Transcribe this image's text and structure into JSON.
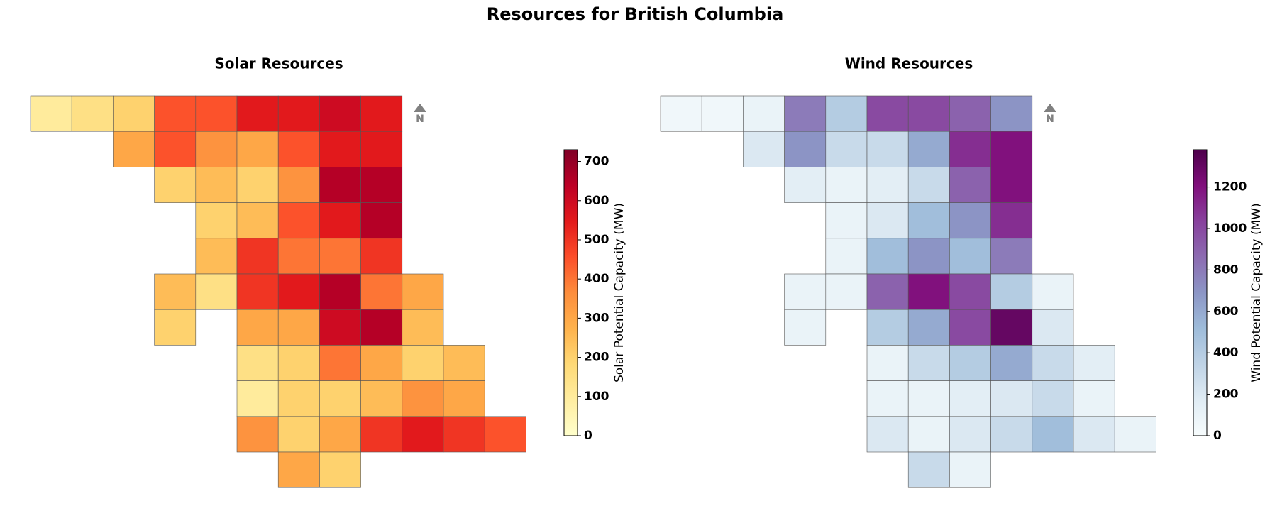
{
  "title": "Resources for British Columbia",
  "chart_data": [
    {
      "type": "map",
      "title": "Solar Resources",
      "north": "N",
      "colorbar_label": "Solar Potential Capacity (MW)",
      "clim": [
        0,
        730
      ],
      "cticks": [
        0,
        100,
        200,
        300,
        400,
        500,
        600,
        700
      ],
      "colors": [
        "#ffffcc",
        "#ffeda0",
        "#fed976",
        "#feb24c",
        "#fd8d3c",
        "#fc4e2a",
        "#e31a1c",
        "#bd0026",
        "#800026"
      ],
      "values": [
        [
          100,
          150,
          200,
          450,
          450,
          550,
          550,
          600,
          550,
          null,
          null,
          null
        ],
        [
          null,
          null,
          300,
          450,
          350,
          300,
          450,
          550,
          550,
          null,
          null,
          null
        ],
        [
          null,
          null,
          null,
          200,
          250,
          200,
          350,
          650,
          650,
          null,
          null,
          null
        ],
        [
          null,
          null,
          null,
          null,
          200,
          250,
          450,
          550,
          650,
          null,
          null,
          null
        ],
        [
          null,
          null,
          null,
          null,
          250,
          500,
          400,
          400,
          500,
          null,
          null,
          null
        ],
        [
          null,
          null,
          null,
          250,
          150,
          500,
          550,
          650,
          400,
          300,
          null,
          null
        ],
        [
          null,
          null,
          null,
          200,
          null,
          300,
          300,
          600,
          650,
          250,
          null,
          null
        ],
        [
          null,
          null,
          null,
          null,
          null,
          150,
          200,
          400,
          300,
          200,
          250,
          null
        ],
        [
          null,
          null,
          null,
          null,
          null,
          100,
          200,
          200,
          250,
          350,
          300,
          null
        ],
        [
          null,
          null,
          null,
          null,
          null,
          350,
          200,
          300,
          500,
          550,
          500,
          450
        ],
        [
          null,
          null,
          null,
          null,
          null,
          null,
          300,
          200,
          null,
          null,
          null,
          null
        ]
      ]
    },
    {
      "type": "map",
      "title": "Wind Resources",
      "north": "N",
      "colorbar_label": "Wind Potential Capacity (MW)",
      "clim": [
        0,
        1380
      ],
      "cticks": [
        0,
        200,
        400,
        600,
        800,
        1000,
        1200
      ],
      "colors": [
        "#f7fcfd",
        "#e0ecf4",
        "#bfd3e6",
        "#9ebcda",
        "#8c96c6",
        "#8c6bb1",
        "#88419d",
        "#810f7c",
        "#4d004b"
      ],
      "values": [
        [
          50,
          50,
          100,
          800,
          400,
          1000,
          1000,
          900,
          700,
          null,
          null,
          null
        ],
        [
          null,
          null,
          200,
          700,
          300,
          300,
          600,
          1100,
          1200,
          null,
          null,
          null
        ],
        [
          null,
          null,
          null,
          150,
          100,
          150,
          300,
          900,
          1200,
          null,
          null,
          null
        ],
        [
          null,
          null,
          null,
          null,
          100,
          200,
          500,
          700,
          1100,
          null,
          null,
          null
        ],
        [
          null,
          null,
          null,
          null,
          100,
          500,
          700,
          500,
          800,
          null,
          null,
          null
        ],
        [
          null,
          null,
          null,
          100,
          100,
          900,
          1200,
          1000,
          400,
          100,
          null,
          null
        ],
        [
          null,
          null,
          null,
          100,
          null,
          400,
          600,
          1000,
          1300,
          200,
          null,
          null
        ],
        [
          null,
          null,
          null,
          null,
          null,
          100,
          300,
          400,
          600,
          300,
          150,
          null
        ],
        [
          null,
          null,
          null,
          null,
          null,
          100,
          100,
          150,
          200,
          300,
          100,
          null
        ],
        [
          null,
          null,
          null,
          null,
          null,
          200,
          100,
          200,
          300,
          500,
          200,
          100
        ],
        [
          null,
          null,
          null,
          null,
          null,
          null,
          300,
          100,
          null,
          null,
          null,
          null
        ]
      ]
    }
  ]
}
